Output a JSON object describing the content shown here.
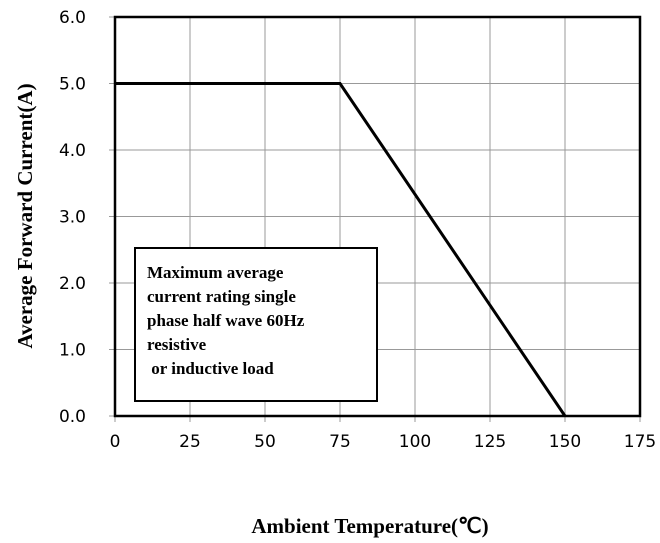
{
  "chart_data": {
    "type": "line",
    "xlabel": "Ambient Temperature(℃)",
    "ylabel": "Average Forward Current(A)",
    "xlim": [
      0,
      175
    ],
    "ylim": [
      0,
      6
    ],
    "x_ticks": [
      "0",
      "25",
      "50",
      "75",
      "100",
      "125",
      "150",
      "175"
    ],
    "y_ticks": [
      "0.0",
      "1.0",
      "2.0",
      "3.0",
      "4.0",
      "5.0",
      "6.0"
    ],
    "grid": true,
    "series": [
      {
        "x": [
          0,
          75,
          150
        ],
        "y": [
          5.0,
          5.0,
          0.0
        ]
      }
    ],
    "annotation": {
      "lines": [
        "Maximum average",
        "current rating single",
        "phase half wave 60Hz",
        "resistive",
        " or inductive load"
      ]
    },
    "colors": {
      "line": "#000000",
      "grid": "#999999",
      "frame": "#000000"
    }
  }
}
